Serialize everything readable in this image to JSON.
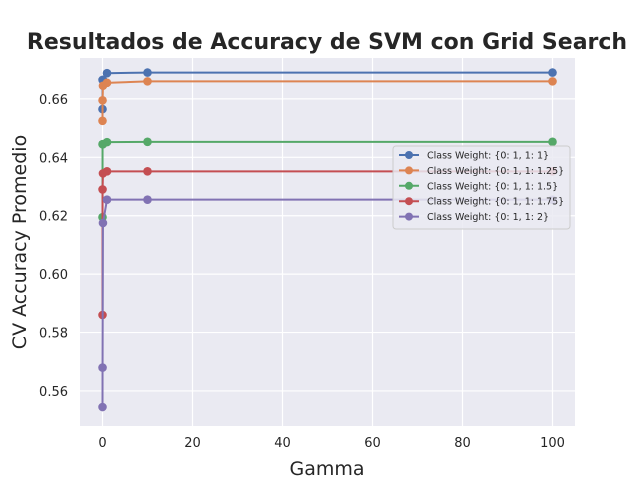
{
  "chart_data": {
    "type": "line",
    "title": "Resultados de Accuracy de SVM con Grid Search",
    "xlabel": "Gamma",
    "ylabel": "CV Accuracy Promedio",
    "xlim": [
      -5,
      105
    ],
    "ylim": [
      0.548,
      0.674
    ],
    "xticks": [
      0,
      20,
      40,
      60,
      80,
      100
    ],
    "xtick_labels": [
      "0",
      "20",
      "40",
      "60",
      "80",
      "100"
    ],
    "yticks": [
      0.56,
      0.58,
      0.6,
      0.62,
      0.64,
      0.66
    ],
    "ytick_labels": [
      "0.56",
      "0.58",
      "0.60",
      "0.62",
      "0.64",
      "0.66"
    ],
    "grid": true,
    "legend_position": "center-right",
    "x": [
      0.001,
      0.01,
      0.1,
      1,
      10,
      100
    ],
    "series": [
      {
        "name": "Class Weight: {0: 1, 1: 1}",
        "color": "#4c72b0",
        "values": [
          0.6565,
          0.6665,
          0.6665,
          0.6688,
          0.669,
          0.669
        ]
      },
      {
        "name": "Class Weight: {0: 1, 1: 1.25}",
        "color": "#dd8452",
        "values": [
          0.6525,
          0.6595,
          0.6645,
          0.6655,
          0.666,
          0.666
        ]
      },
      {
        "name": "Class Weight: {0: 1, 1: 1.5}",
        "color": "#55a868",
        "values": [
          0.6195,
          0.6445,
          0.6445,
          0.6452,
          0.6453,
          0.6453
        ]
      },
      {
        "name": "Class Weight: {0: 1, 1: 1.75}",
        "color": "#c44e52",
        "values": [
          0.586,
          0.629,
          0.6345,
          0.6352,
          0.6352,
          0.6352
        ]
      },
      {
        "name": "Class Weight: {0: 1, 1: 2}",
        "color": "#8172b3",
        "values": [
          0.5545,
          0.568,
          0.6175,
          0.6255,
          0.6255,
          0.6255
        ]
      }
    ]
  }
}
